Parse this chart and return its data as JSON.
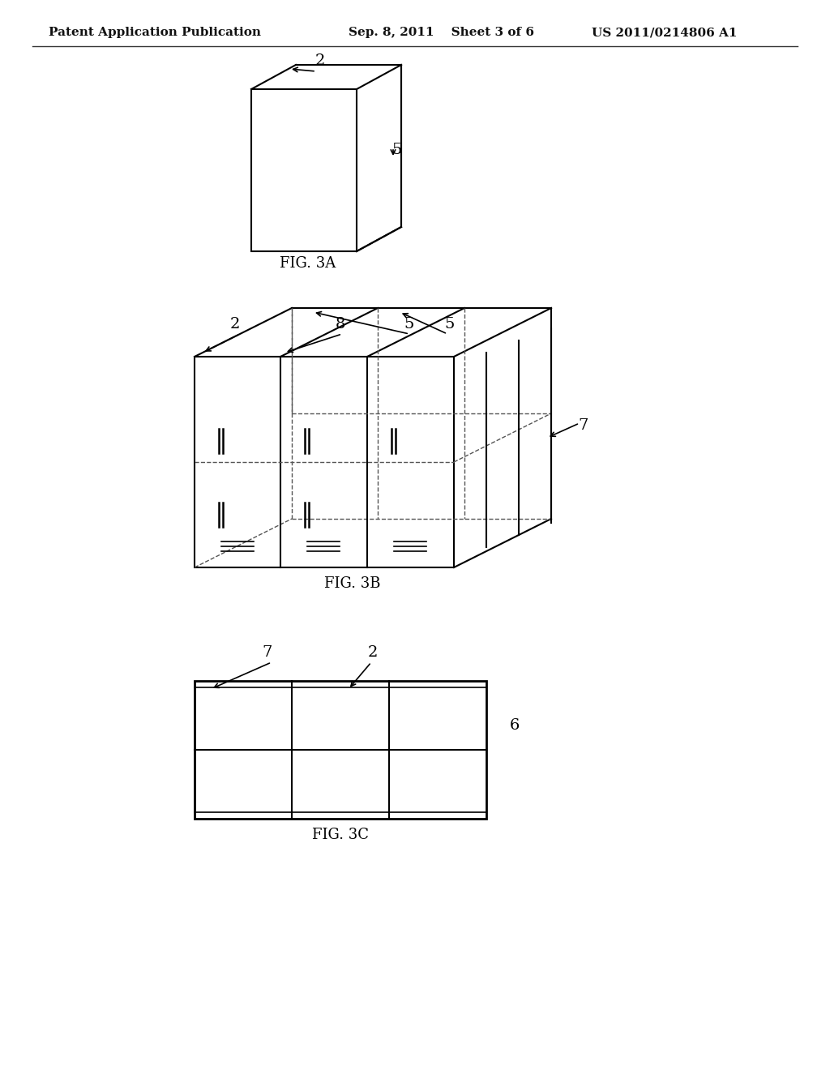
{
  "header_left": "Patent Application Publication",
  "header_mid": "Sep. 8, 2011    Sheet 3 of 6",
  "header_right": "US 2011/0214806 A1",
  "fig3a_label": "FIG. 3A",
  "fig3b_label": "FIG. 3B",
  "fig3c_label": "FIG. 3C",
  "bg_color": "#ffffff",
  "line_color": "#000000",
  "dashed_color": "#555555",
  "label_color": "#333333",
  "annotation_fontsize": 14,
  "header_fontsize": 11,
  "fig_label_fontsize": 13
}
